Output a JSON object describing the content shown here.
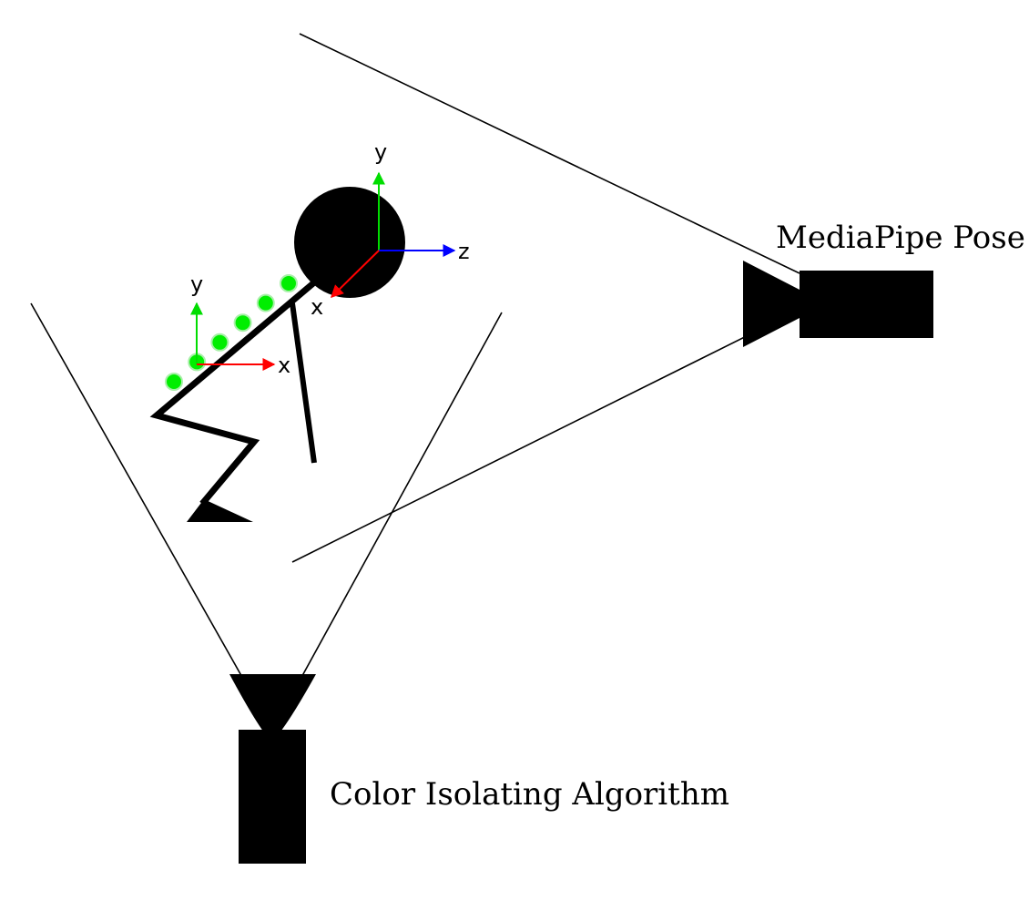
{
  "labels": {
    "mediapipe_camera": "MediaPipe Pose",
    "color_camera": "Color Isolating Algorithm"
  },
  "head_axes": {
    "y": "y",
    "z": "z",
    "x": "x"
  },
  "back_axes": {
    "y": "y",
    "x": "x"
  },
  "colors": {
    "ink": "#000000",
    "axis_x": "#ff0000",
    "axis_y": "#00dd00",
    "axis_z": "#0000ff",
    "marker_fill": "#00ee00",
    "marker_stroke": "#a8f0a8"
  },
  "icons": {
    "mediapipe_camera": "camera-icon",
    "color_camera": "camera-icon",
    "person": "stick-figure"
  },
  "back_marker_count": 6
}
